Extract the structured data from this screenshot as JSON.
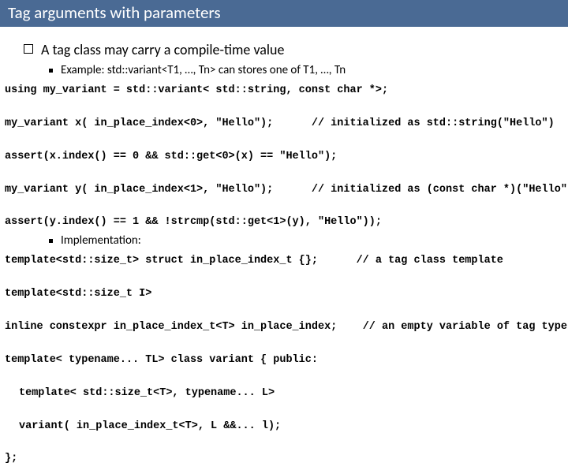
{
  "title": "Tag arguments with parameters",
  "bullet1": "A tag class may carry a compile-time value",
  "bullet2a": "Example: std::variant<T1, …, Tn> can stores one of T1, …, Tn",
  "code1": {
    "l1": "using my_variant = std::variant< std::string, const char *>;",
    "l2a": "my_variant x( in_place_index<0>, \"Hello\");",
    "l2b": "// initialized as std::string(\"Hello\")",
    "l3": "assert(x.index() == 0 && std::get<0>(x) == \"Hello\");",
    "l4a": "my_variant y( in_place_index<1>, \"Hello\");",
    "l4b": "// initialized as (const char *)(\"Hello\")",
    "l5": "assert(y.index() == 1 && !strcmp(std::get<1>(y), \"Hello\"));"
  },
  "bullet2b": "Implementation:",
  "code2": {
    "l1a": "template<std::size_t> struct in_place_index_t {};",
    "l1b": "// a tag class template",
    "l2": "template<std::size_t I>",
    "l3a": "inline constexpr in_place_index_t<T> in_place_index;",
    "l3b": "// an empty variable of tag type",
    "l4": "template< typename... TL> class variant { public:",
    "l5": "template< std::size_t<T>, typename... L>",
    "l6": "variant( in_place_index_t<T>, L &&... l);",
    "l7": "};"
  },
  "colors": {
    "title_bg": "#4a6a94",
    "title_fg": "#ffffff",
    "text": "#000000",
    "bg": "#ffffff"
  },
  "fonts": {
    "body": "Calibri",
    "code": "Courier New",
    "title_size_pt": 21,
    "bullet1_size_pt": 18,
    "bullet2_size_pt": 15,
    "code_size_pt": 13.5
  }
}
